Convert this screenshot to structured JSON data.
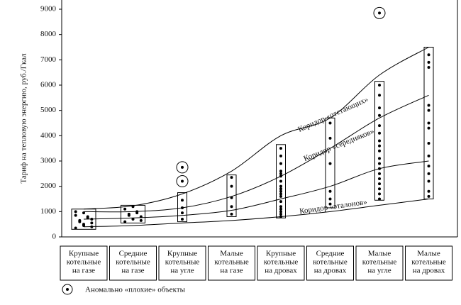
{
  "chart_data": {
    "type": "strip",
    "y_label": "Тариф на тепловую энергию, руб./Гкал",
    "ylim": [
      0,
      9000
    ],
    "yticks": [
      0,
      1000,
      2000,
      3000,
      4000,
      5000,
      6000,
      7000,
      8000,
      9000
    ],
    "categories": [
      [
        "Крупные",
        "котельные",
        "на газе"
      ],
      [
        "Средние",
        "котельные",
        "на газе"
      ],
      [
        "Крупные",
        "котельные",
        "на угле"
      ],
      [
        "Малые",
        "котельные",
        "на газе"
      ],
      [
        "Крупные",
        "котельные",
        "на дровах"
      ],
      [
        "Средние",
        "котельные",
        "на дровах"
      ],
      [
        "Малые",
        "котельные",
        "на угле"
      ],
      [
        "Малые",
        "котельные",
        "на дровах"
      ]
    ],
    "ranges": [
      [
        300,
        1100
      ],
      [
        550,
        1250
      ],
      [
        600,
        1750
      ],
      [
        800,
        2450
      ],
      [
        750,
        3650
      ],
      [
        1150,
        4700
      ],
      [
        1450,
        6150
      ],
      [
        1500,
        7500
      ]
    ],
    "points": [
      [
        350,
        450,
        550,
        650,
        750,
        850,
        950,
        400,
        600,
        800,
        1000,
        500,
        700
      ],
      [
        600,
        700,
        800,
        900,
        1000,
        1100,
        1200,
        650,
        850,
        950
      ],
      [
        700,
        950,
        1150,
        1450
      ],
      [
        900,
        1200,
        1550,
        2000,
        2350
      ],
      [
        800,
        900,
        1000,
        1100,
        1200,
        1400,
        1600,
        1700,
        1800,
        1900,
        2000,
        2200,
        2400,
        2500,
        2600,
        2900,
        3200,
        3500
      ],
      [
        1300,
        1500,
        1800,
        2900,
        3900,
        4500
      ],
      [
        1500,
        1700,
        1900,
        2100,
        2300,
        2500,
        2700,
        2900,
        3100,
        3400,
        3600,
        3800,
        4100,
        4400,
        4800,
        5100,
        5600,
        6000
      ],
      [
        1600,
        1800,
        2200,
        2500,
        2800,
        3200,
        3700,
        4300,
        4500,
        5000,
        5200,
        6700,
        6900,
        7200
      ]
    ],
    "anomalies": [
      [],
      [],
      [
        2750,
        2200
      ],
      [],
      [],
      [],
      [
        8850
      ],
      []
    ],
    "curves": [
      [
        1100,
        1230,
        1700,
        2600,
        4000,
        4700,
        6400,
        7500
      ],
      [
        1000,
        1000,
        1150,
        1600,
        2400,
        3500,
        4700,
        5600
      ],
      [
        700,
        750,
        850,
        1050,
        1500,
        2000,
        2700,
        3000
      ],
      [
        400,
        450,
        550,
        650,
        800,
        1000,
        1250,
        1500
      ]
    ],
    "corridors": [
      "Коридор «отстающих»",
      "Коридор «середняков»",
      "Коридор «эталонов»"
    ],
    "legend": "Аномально «плохие» объекты"
  }
}
